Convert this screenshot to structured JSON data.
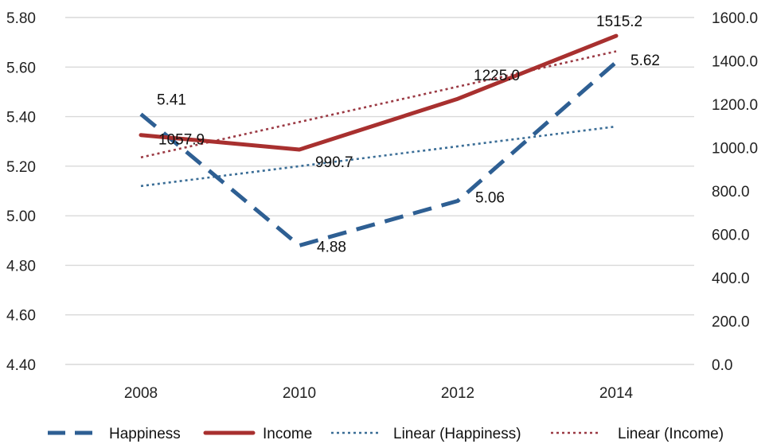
{
  "chart_data": {
    "type": "line",
    "categories": [
      "2008",
      "2010",
      "2012",
      "2014"
    ],
    "y_left": {
      "range": [
        4.4,
        5.8
      ],
      "step": 0.2,
      "ticks": [
        "4.40",
        "4.60",
        "4.80",
        "5.00",
        "5.20",
        "5.40",
        "5.60",
        "5.80"
      ]
    },
    "y_right": {
      "range": [
        0,
        1600
      ],
      "step": 200,
      "ticks": [
        "0.0",
        "200.0",
        "400.0",
        "600.0",
        "800.0",
        "1000.0",
        "1200.0",
        "1400.0",
        "1600.0"
      ]
    },
    "grid": true,
    "legend_position": "bottom",
    "series": [
      {
        "name": "Happiness",
        "axis": "left",
        "style": "dashed",
        "color": "#2e5f93",
        "values": [
          5.41,
          4.88,
          5.06,
          5.62
        ],
        "labels": [
          "5.41",
          "4.88",
          "5.06",
          "5.62"
        ]
      },
      {
        "name": "Income",
        "axis": "right",
        "style": "solid",
        "color": "#a8302f",
        "values": [
          1057.9,
          990.7,
          1225.0,
          1515.2
        ],
        "labels": [
          "1057.9",
          "990.7",
          "1225.0",
          "1515.2"
        ]
      },
      {
        "name": "Linear (Happiness)",
        "axis": "left",
        "style": "dotted",
        "color": "#3a6d96",
        "values": [
          5.12,
          5.2,
          5.28,
          5.36
        ]
      },
      {
        "name": "Linear (Income)",
        "axis": "right",
        "style": "dotted",
        "color": "#9b3a44",
        "values": [
          955,
          1118,
          1281,
          1444
        ]
      }
    ]
  }
}
